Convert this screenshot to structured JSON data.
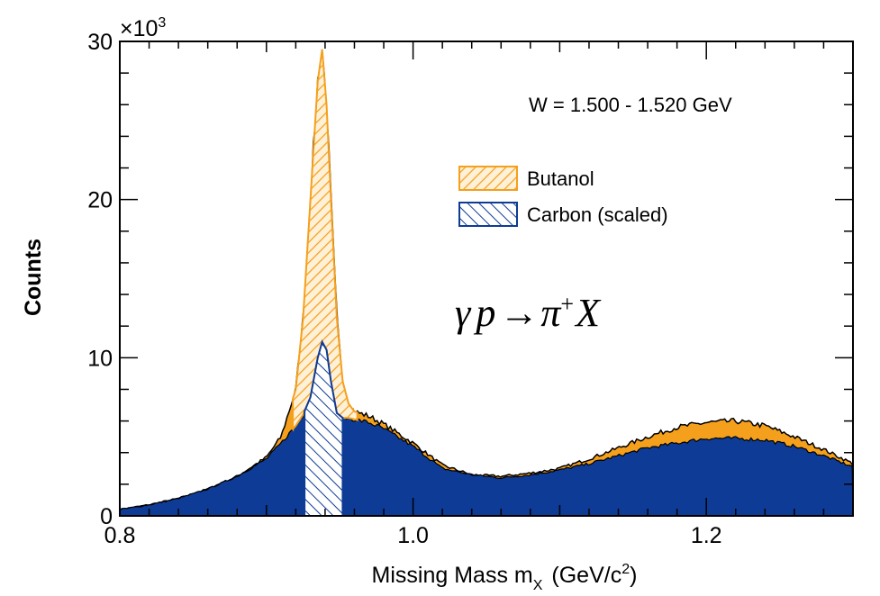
{
  "chart_data": {
    "type": "area",
    "title": "",
    "xlabel_main": "Missing Mass m",
    "xlabel_sub": "X",
    "xlabel_unit": "(GeV/c",
    "xlabel_sup": "2",
    "xlabel_close": ")",
    "ylabel": "Counts",
    "y_multiplier_base": "×10",
    "y_multiplier_exp": "3",
    "xlim": [
      0.8,
      1.3
    ],
    "ylim": [
      0,
      30
    ],
    "x_ticks": [
      0.8,
      1.0,
      1.2
    ],
    "x_tick_labels": [
      "0.8",
      "1.0",
      "1.2"
    ],
    "y_ticks": [
      0,
      10,
      20,
      30
    ],
    "y_tick_labels": [
      "0",
      "10",
      "20",
      "30"
    ],
    "annotation": "W = 1.500 - 1.520 GeV",
    "reaction": {
      "gamma": "γ",
      "p": "p",
      "arrow": "→",
      "pi": "π",
      "sup": "+",
      "X": "X"
    },
    "legend_position": "upper-right",
    "series": [
      {
        "name": "Butanol",
        "color": "#F5A01C",
        "pattern": "hatched-peak",
        "x": [
          0.8,
          0.82,
          0.84,
          0.86,
          0.88,
          0.9,
          0.91,
          0.92,
          0.925,
          0.93,
          0.935,
          0.938,
          0.941,
          0.944,
          0.948,
          0.952,
          0.956,
          0.96,
          0.97,
          0.98,
          1.0,
          1.02,
          1.04,
          1.06,
          1.08,
          1.1,
          1.12,
          1.14,
          1.16,
          1.18,
          1.2,
          1.22,
          1.24,
          1.26,
          1.28,
          1.3
        ],
        "values": [
          0.4,
          0.7,
          1.1,
          1.7,
          2.5,
          3.7,
          5.0,
          8.0,
          12.5,
          20.0,
          27.5,
          29.5,
          26.0,
          20.0,
          12.5,
          8.5,
          7.1,
          6.6,
          6.3,
          5.8,
          4.6,
          3.2,
          2.6,
          2.5,
          2.7,
          3.0,
          3.6,
          4.3,
          5.0,
          5.6,
          5.9,
          6.0,
          5.7,
          5.0,
          4.2,
          3.3
        ]
      },
      {
        "name": "Carbon (scaled)",
        "color": "#0E3B96",
        "pattern": "hatched-peak",
        "x": [
          0.8,
          0.82,
          0.84,
          0.86,
          0.88,
          0.9,
          0.91,
          0.92,
          0.925,
          0.93,
          0.935,
          0.938,
          0.941,
          0.944,
          0.948,
          0.952,
          0.956,
          0.96,
          0.97,
          0.98,
          1.0,
          1.02,
          1.04,
          1.06,
          1.08,
          1.1,
          1.12,
          1.14,
          1.16,
          1.18,
          1.2,
          1.22,
          1.24,
          1.26,
          1.28,
          1.3
        ],
        "values": [
          0.4,
          0.7,
          1.1,
          1.7,
          2.5,
          3.6,
          4.6,
          5.7,
          6.4,
          7.5,
          10.0,
          11.0,
          10.5,
          8.5,
          6.5,
          6.2,
          6.2,
          6.1,
          5.9,
          5.5,
          4.4,
          3.0,
          2.6,
          2.4,
          2.6,
          2.9,
          3.3,
          3.8,
          4.3,
          4.6,
          4.9,
          4.9,
          4.8,
          4.4,
          3.8,
          3.1
        ]
      }
    ],
    "hatched_band": [
      0.926,
      0.952
    ]
  }
}
